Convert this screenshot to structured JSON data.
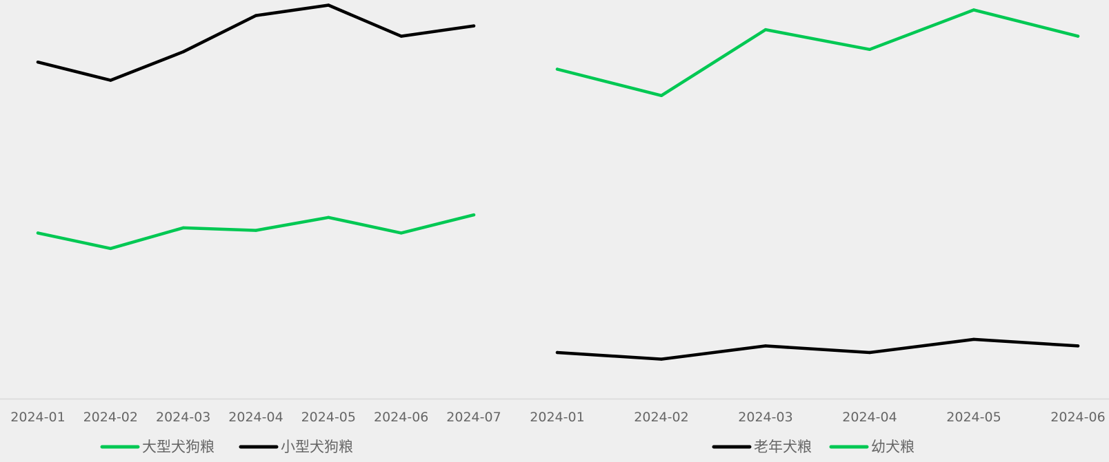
{
  "colors": {
    "background": "#efefef",
    "green": "#00c853",
    "black": "#000000",
    "axis": "#d8d8d8",
    "text": "#666666"
  },
  "chart_data": [
    {
      "type": "line",
      "categories": [
        "2024-01",
        "2024-02",
        "2024-03",
        "2024-04",
        "2024-05",
        "2024-06",
        "2024-07"
      ],
      "series": [
        {
          "name": "大型犬狗粮",
          "color": "#00c853",
          "values": [
            32,
            29,
            33,
            32.5,
            35,
            32,
            35.5
          ]
        },
        {
          "name": "小型犬狗粮",
          "color": "#000000",
          "values": [
            65,
            61.5,
            67,
            74,
            76,
            70,
            72
          ]
        }
      ],
      "ylim": [
        0,
        77
      ],
      "grid": false,
      "legend": "bottom"
    },
    {
      "type": "line",
      "categories": [
        "2024-01",
        "2024-02",
        "2024-03",
        "2024-04",
        "2024-05",
        "2024-06"
      ],
      "series": [
        {
          "name": "老年犬粮",
          "color": "#000000",
          "values": [
            12,
            11,
            13,
            12,
            14,
            13
          ]
        },
        {
          "name": "幼犬粮",
          "color": "#00c853",
          "values": [
            55,
            51,
            61,
            58,
            64,
            60
          ]
        }
      ],
      "ylim": [
        5,
        65.5
      ],
      "grid": false,
      "legend": "bottom-right"
    }
  ]
}
